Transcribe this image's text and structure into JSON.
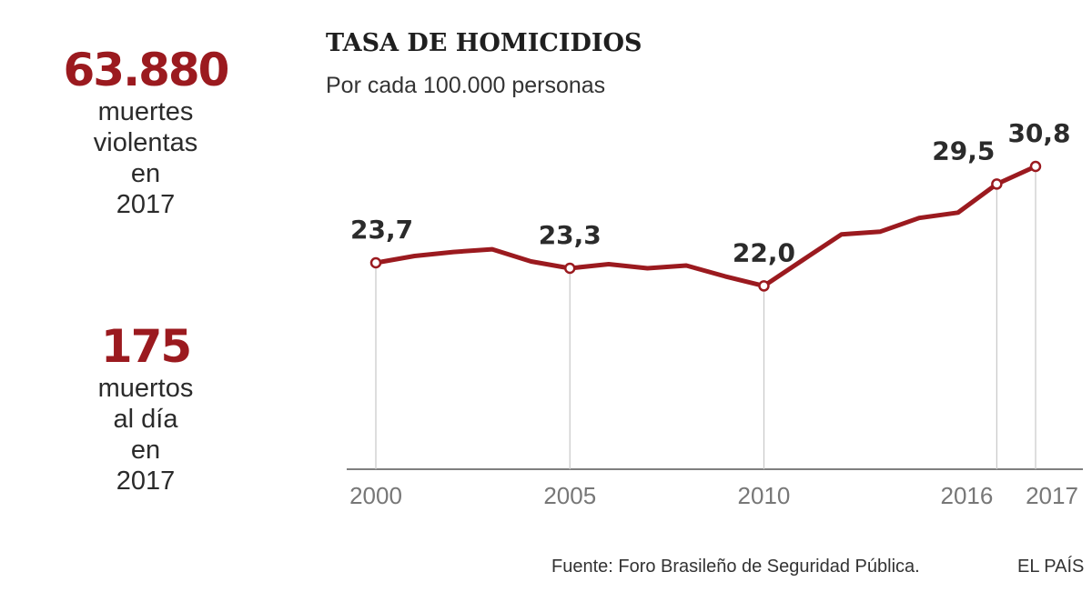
{
  "stats": [
    {
      "value": "63.880",
      "lines": [
        "muertes",
        "violentas",
        "en",
        "2017"
      ]
    },
    {
      "value": "175",
      "lines": [
        "muertos",
        "al día",
        "en",
        "2017"
      ]
    }
  ],
  "colors": {
    "accent": "#9b1a1f",
    "axis": "#555555",
    "guide": "#c8c8c8",
    "tick_text": "#777777"
  },
  "chart_data": {
    "type": "line",
    "title": "TASA DE HOMICIDIOS",
    "subtitle": "Por cada 100.000 personas",
    "xlabel": "",
    "ylabel": "",
    "x": [
      2000,
      2001,
      2002,
      2003,
      2004,
      2005,
      2006,
      2007,
      2008,
      2009,
      2010,
      2011,
      2012,
      2013,
      2014,
      2015,
      2016,
      2017
    ],
    "series": [
      {
        "values": [
          23.7,
          24.2,
          24.5,
          24.7,
          23.8,
          23.3,
          23.6,
          23.3,
          23.5,
          22.7,
          22.0,
          23.9,
          25.8,
          26.0,
          27.0,
          27.4,
          29.5,
          30.8
        ]
      }
    ],
    "x_ticks": [
      2000,
      2005,
      2010,
      2016,
      2017
    ],
    "ylim": [
      0,
      31
    ],
    "labeled_points": [
      {
        "x": 2000,
        "label": "23,7"
      },
      {
        "x": 2005,
        "label": "23,3"
      },
      {
        "x": 2010,
        "label": "22,0"
      },
      {
        "x": 2016,
        "label": "29,5"
      },
      {
        "x": 2017,
        "label": "30,8"
      }
    ],
    "grid": false,
    "legend": "none"
  },
  "footer": {
    "source": "Fuente: Foro Brasileño de Seguridad Pública.",
    "brand": "EL PAÍS"
  }
}
